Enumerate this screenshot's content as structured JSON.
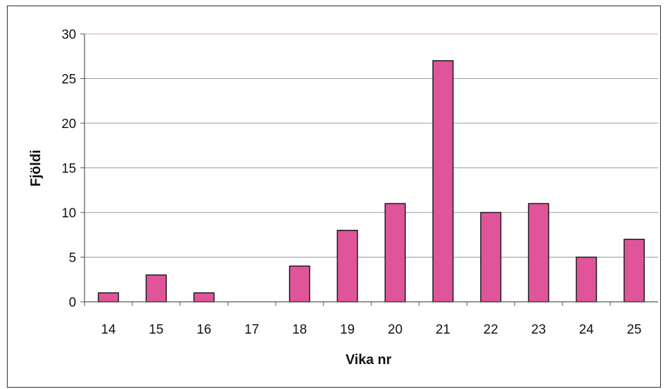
{
  "chart_data": {
    "type": "bar",
    "title": "",
    "xlabel": "Vika nr",
    "ylabel": "Fjöldi",
    "categories": [
      "14",
      "15",
      "16",
      "17",
      "18",
      "19",
      "20",
      "21",
      "22",
      "23",
      "24",
      "25"
    ],
    "values": [
      1,
      3,
      1,
      0,
      4,
      8,
      11,
      27,
      10,
      11,
      5,
      7
    ],
    "ylim": [
      0,
      30
    ],
    "yticks": [
      0,
      5,
      10,
      15,
      20,
      25,
      30
    ],
    "grid": true,
    "legend": "none",
    "colors": {
      "bar_fill": "#e0559a",
      "bar_stroke": "#1a1a1a",
      "grid": "#9a9a9a",
      "top_gridline": "#d8a0b0",
      "axis": "#555555"
    }
  }
}
